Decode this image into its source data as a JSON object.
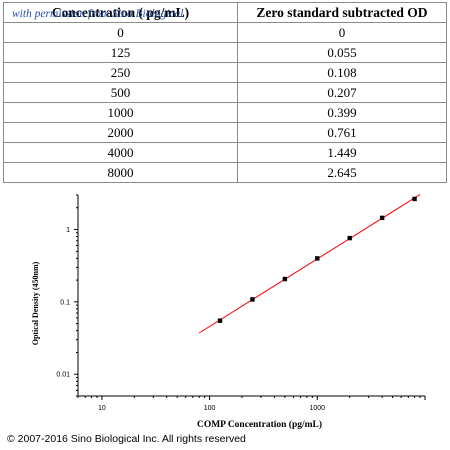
{
  "watermark": "with permission from Sino Biological",
  "table": {
    "headers": [
      "Concentration ( pg/mL)",
      "Zero standard subtracted OD"
    ],
    "rows": [
      [
        "0",
        "0"
      ],
      [
        "125",
        "0.055"
      ],
      [
        "250",
        "0.108"
      ],
      [
        "500",
        "0.207"
      ],
      [
        "1000",
        "0.399"
      ],
      [
        "2000",
        "0.761"
      ],
      [
        "4000",
        "1.449"
      ],
      [
        "8000",
        "2.645"
      ]
    ]
  },
  "chart_data": {
    "type": "scatter",
    "xscale": "log",
    "yscale": "log",
    "xlabel": "COMP Concentration (pg/mL)",
    "ylabel": "Optical Density (450nm)",
    "xlim": [
      6,
      10000
    ],
    "ylim": [
      0.005,
      3
    ],
    "xticks": [
      10,
      100,
      1000
    ],
    "xtick_labels": [
      "10",
      "100",
      "1000"
    ],
    "yticks": [
      0.01,
      0.1,
      1
    ],
    "ytick_labels": [
      "0.01",
      "0.1",
      "1"
    ],
    "grid": false,
    "series": [
      {
        "x": [
          125,
          250,
          500,
          1000,
          2000,
          4000,
          8000
        ],
        "y": [
          0.055,
          0.108,
          0.207,
          0.399,
          0.761,
          1.449,
          2.645
        ],
        "marker_color": "#000000",
        "fit_color": "#ff0000"
      }
    ]
  },
  "footer": "© 2007-2016 Sino Biological Inc. All rights reserved"
}
